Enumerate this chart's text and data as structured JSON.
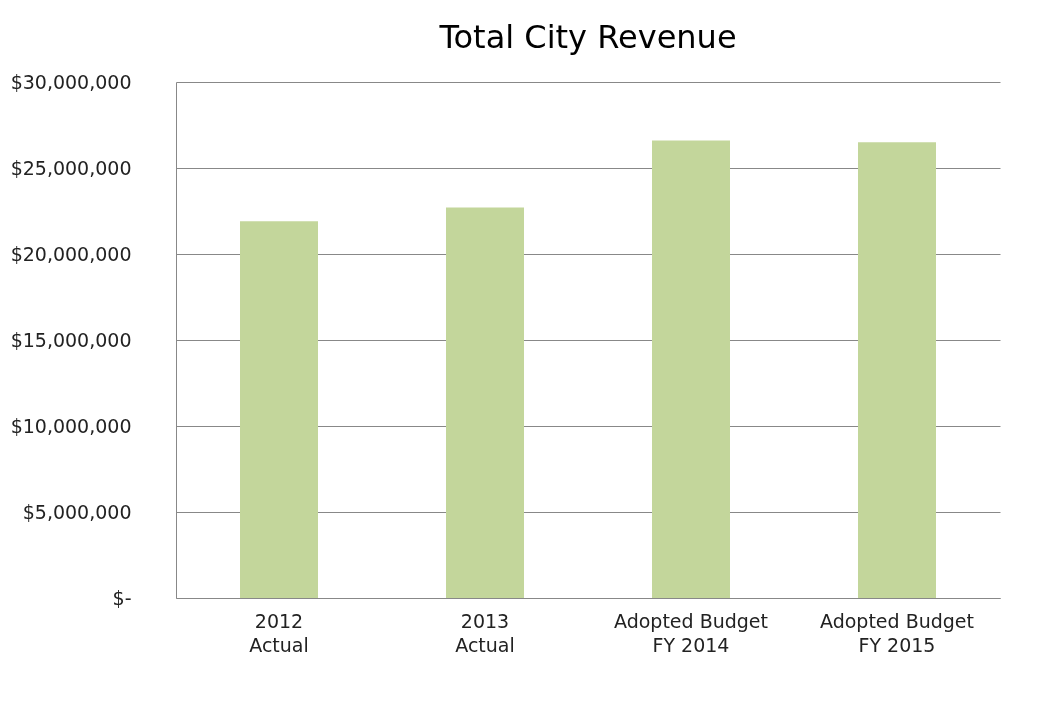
{
  "chart_data": {
    "type": "bar",
    "title": "Total City Revenue",
    "categories": [
      "2012\nActual",
      "2013\nActual",
      "Adopted Budget\nFY 2014",
      "Adopted Budget\nFY 2015"
    ],
    "values": [
      21900000,
      22700000,
      26600000,
      26500000
    ],
    "color": "#c3d69b",
    "ylim": [
      0,
      30000000
    ],
    "yticks": [
      {
        "value": 0,
        "label": "$-"
      },
      {
        "value": 5000000,
        "label": "$5,000,000"
      },
      {
        "value": 10000000,
        "label": "$10,000,000"
      },
      {
        "value": 15000000,
        "label": "$15,000,000"
      },
      {
        "value": 20000000,
        "label": "$20,000,000"
      },
      {
        "value": 25000000,
        "label": "$25,000,000"
      },
      {
        "value": 30000000,
        "label": "$30,000,000"
      }
    ],
    "grid": "y"
  }
}
